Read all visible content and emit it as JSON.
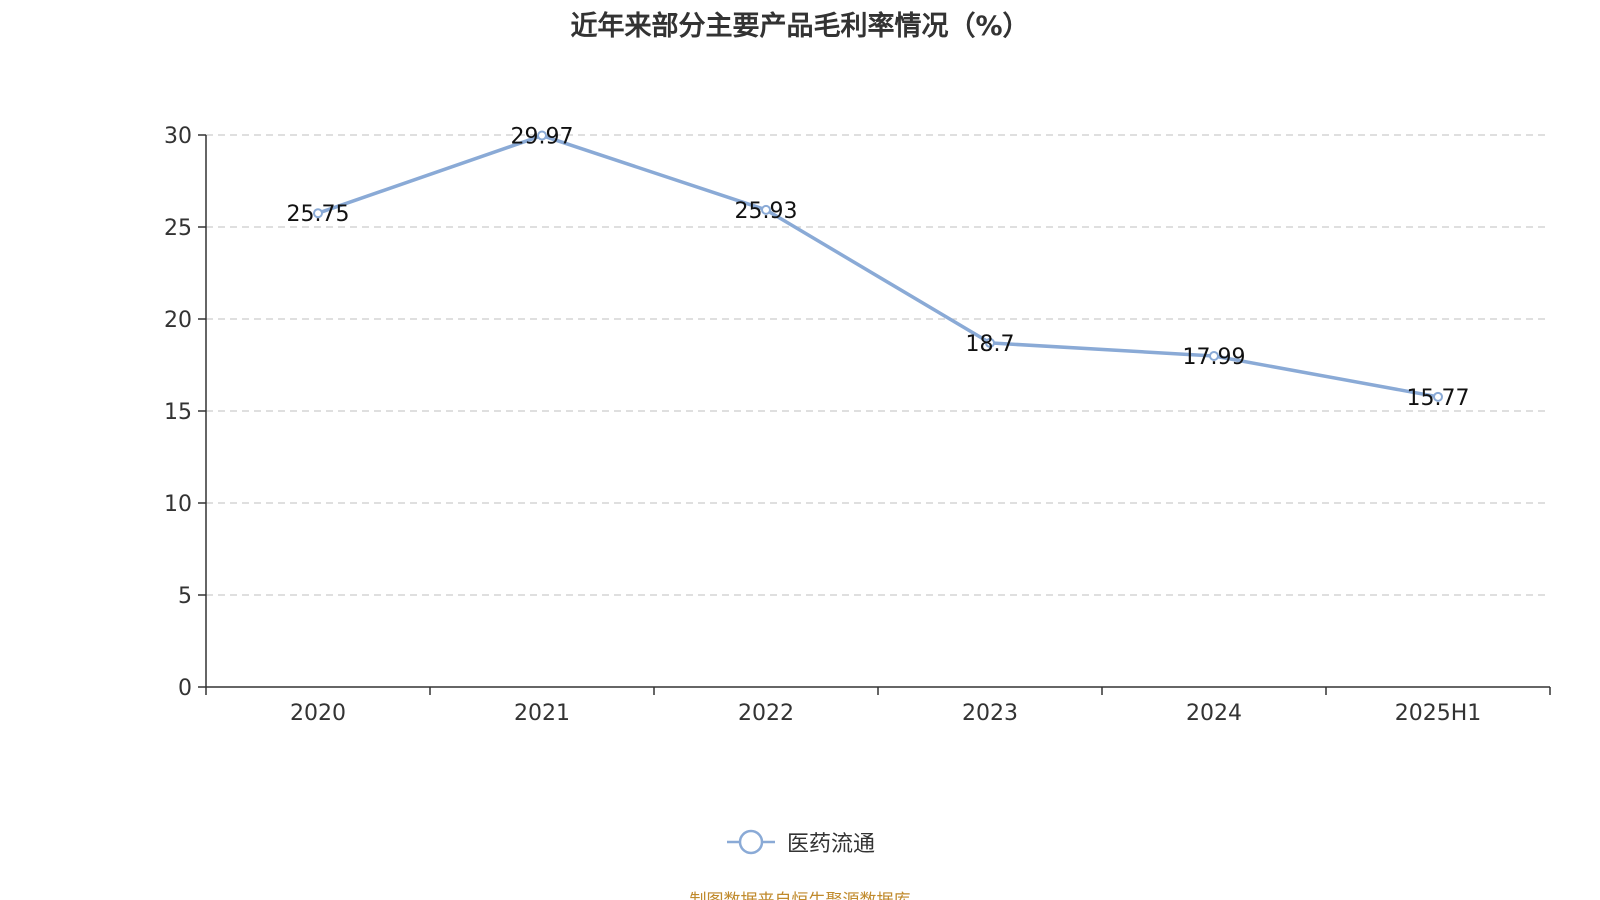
{
  "colors": {
    "series": "#8aaad6",
    "axis": "#333333",
    "grid": "#cccccc",
    "source": "#c08a2c"
  },
  "legend_icon": "circle-line-marker",
  "source_text": "制图数据来自恒生聚源数据库",
  "chart_data": {
    "type": "line",
    "title": "近年来部分主要产品毛利率情况（%）",
    "xlabel": "",
    "ylabel": "",
    "categories": [
      "2020",
      "2021",
      "2022",
      "2023",
      "2024",
      "2025H1"
    ],
    "series": [
      {
        "name": "医药流通",
        "values": [
          25.75,
          29.97,
          25.93,
          18.7,
          17.99,
          15.77
        ]
      }
    ],
    "ylim": [
      0,
      30
    ],
    "yticks": [
      0,
      5,
      10,
      15,
      20,
      25,
      30
    ],
    "grid": "horizontal dashed",
    "legend_position": "bottom-center",
    "data_labels": true
  }
}
